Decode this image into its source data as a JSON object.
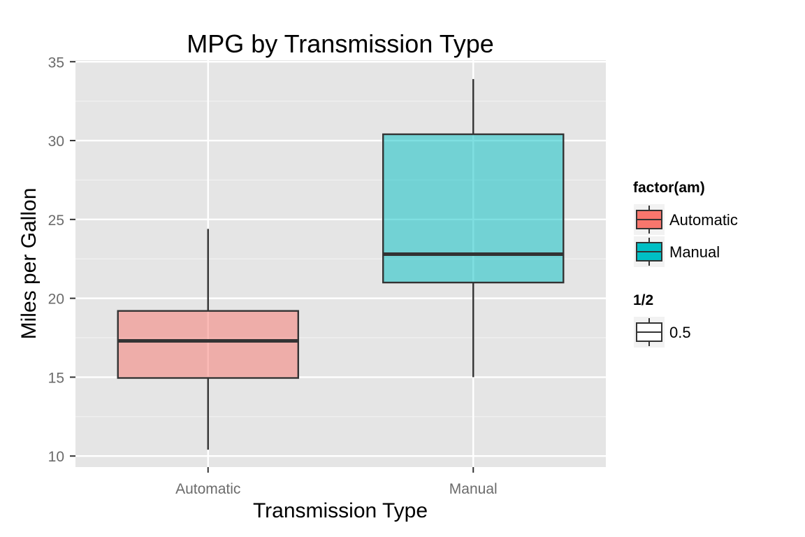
{
  "chart_data": {
    "type": "box",
    "title": "MPG by Transmission Type",
    "xlabel": "Transmission Type",
    "ylabel": "Miles per Gallon",
    "ylim": [
      9.3,
      35.1
    ],
    "y_ticks": [
      10,
      15,
      20,
      25,
      30,
      35
    ],
    "grid": true,
    "legend_position": "right",
    "categories": [
      "Automatic",
      "Manual"
    ],
    "boxes": [
      {
        "category": "Automatic",
        "min": 10.4,
        "q1": 14.95,
        "median": 17.3,
        "q3": 19.2,
        "max": 24.4,
        "fill": "#f8766d"
      },
      {
        "category": "Manual",
        "min": 15.0,
        "q1": 21.0,
        "median": 22.8,
        "q3": 30.4,
        "max": 33.9,
        "fill": "#00bfc4"
      }
    ],
    "box_alpha": 0.5,
    "legends": [
      {
        "title": "factor(am)",
        "entries": [
          {
            "label": "Automatic",
            "fill": "#f8766d"
          },
          {
            "label": "Manual",
            "fill": "#00bfc4"
          }
        ]
      },
      {
        "title": "1/2",
        "entries": [
          {
            "label": "0.5",
            "fill": "#ffffff"
          }
        ]
      }
    ]
  }
}
